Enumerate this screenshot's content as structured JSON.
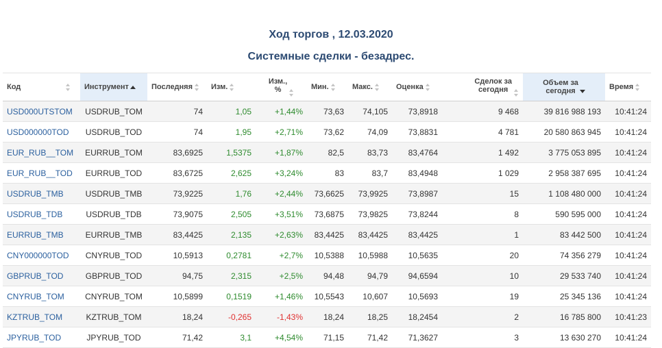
{
  "header": {
    "title": "Ход торгов , 12.03.2020",
    "subtitle": "Системные сделки - безадрес."
  },
  "table": {
    "columns": {
      "code": "Код",
      "instrument": "Инструмент",
      "last": "Последняя",
      "change": "Изм.",
      "change_pct_l1": "Изм.,",
      "change_pct_l2": "%",
      "min": "Мин.",
      "max": "Макс.",
      "estimate": "Оценка",
      "deals_l1": "Сделок за",
      "deals_l2": "сегодня",
      "volume_l1": "Объем за",
      "volume_l2": "сегодня",
      "time": "Время"
    },
    "rows": [
      {
        "code": "USD000UTSTOM",
        "instrument": "USDRUB_TOM",
        "last": "74",
        "change": "1,05",
        "change_pct": "+1,44%",
        "min": "73,63",
        "max": "74,105",
        "estimate": "73,8918",
        "deals": "9 468",
        "volume": "39 816 988 193",
        "time": "10:41:24",
        "dir": "pos"
      },
      {
        "code": "USD000000TOD",
        "instrument": "USDRUB_TOD",
        "last": "74",
        "change": "1,95",
        "change_pct": "+2,71%",
        "min": "73,62",
        "max": "74,09",
        "estimate": "73,8831",
        "deals": "4 781",
        "volume": "20 580 863 945",
        "time": "10:41:24",
        "dir": "pos"
      },
      {
        "code": "EUR_RUB__TOM",
        "instrument": "EURRUB_TOM",
        "last": "83,6925",
        "change": "1,5375",
        "change_pct": "+1,87%",
        "min": "82,5",
        "max": "83,73",
        "estimate": "83,4764",
        "deals": "1 492",
        "volume": "3 775 053 895",
        "time": "10:41:24",
        "dir": "pos"
      },
      {
        "code": "EUR_RUB__TOD",
        "instrument": "EURRUB_TOD",
        "last": "83,6725",
        "change": "2,625",
        "change_pct": "+3,24%",
        "min": "83",
        "max": "83,7",
        "estimate": "83,4948",
        "deals": "1 029",
        "volume": "2 958 387 695",
        "time": "10:41:24",
        "dir": "pos"
      },
      {
        "code": "USDRUB_TMB",
        "instrument": "USDRUB_TMB",
        "last": "73,9225",
        "change": "1,76",
        "change_pct": "+2,44%",
        "min": "73,6625",
        "max": "73,9925",
        "estimate": "73,8987",
        "deals": "15",
        "volume": "1 108 480 000",
        "time": "10:41:24",
        "dir": "pos"
      },
      {
        "code": "USDRUB_TDB",
        "instrument": "USDRUB_TDB",
        "last": "73,9075",
        "change": "2,505",
        "change_pct": "+3,51%",
        "min": "73,6875",
        "max": "73,9825",
        "estimate": "73,8244",
        "deals": "8",
        "volume": "590 595 000",
        "time": "10:41:24",
        "dir": "pos"
      },
      {
        "code": "EURRUB_TMB",
        "instrument": "EURRUB_TMB",
        "last": "83,4425",
        "change": "2,135",
        "change_pct": "+2,63%",
        "min": "83,4425",
        "max": "83,4425",
        "estimate": "83,4425",
        "deals": "1",
        "volume": "83 442 500",
        "time": "10:41:24",
        "dir": "pos"
      },
      {
        "code": "CNY000000TOD",
        "instrument": "CNYRUB_TOD",
        "last": "10,5913",
        "change": "0,2781",
        "change_pct": "+2,7%",
        "min": "10,5388",
        "max": "10,5988",
        "estimate": "10,5635",
        "deals": "20",
        "volume": "74 356 279",
        "time": "10:41:24",
        "dir": "pos"
      },
      {
        "code": "GBPRUB_TOD",
        "instrument": "GBPRUB_TOD",
        "last": "94,75",
        "change": "2,315",
        "change_pct": "+2,5%",
        "min": "94,48",
        "max": "94,79",
        "estimate": "94,6594",
        "deals": "10",
        "volume": "29 533 740",
        "time": "10:41:24",
        "dir": "pos"
      },
      {
        "code": "CNYRUB_TOM",
        "instrument": "CNYRUB_TOM",
        "last": "10,5899",
        "change": "0,1519",
        "change_pct": "+1,46%",
        "min": "10,5543",
        "max": "10,607",
        "estimate": "10,5693",
        "deals": "19",
        "volume": "25 345 136",
        "time": "10:41:24",
        "dir": "pos"
      },
      {
        "code": "KZTRUB_TOM",
        "instrument": "KZTRUB_TOM",
        "last": "18,24",
        "change": "-0,265",
        "change_pct": "-1,43%",
        "min": "18,24",
        "max": "18,25",
        "estimate": "18,2454",
        "deals": "2",
        "volume": "16 785 800",
        "time": "10:41:23",
        "dir": "neg"
      },
      {
        "code": "JPYRUB_TOD",
        "instrument": "JPYRUB_TOD",
        "last": "71,42",
        "change": "3,1",
        "change_pct": "+4,54%",
        "min": "71,15",
        "max": "71,42",
        "estimate": "71,3627",
        "deals": "3",
        "volume": "13 630 270",
        "time": "10:41:24",
        "dir": "pos"
      }
    ]
  },
  "colors": {
    "title": "#2c4a72",
    "link": "#2a5f9e",
    "positive": "#2d8a2d",
    "negative": "#e03030",
    "sorted_header_bg": "#e4eef9"
  }
}
